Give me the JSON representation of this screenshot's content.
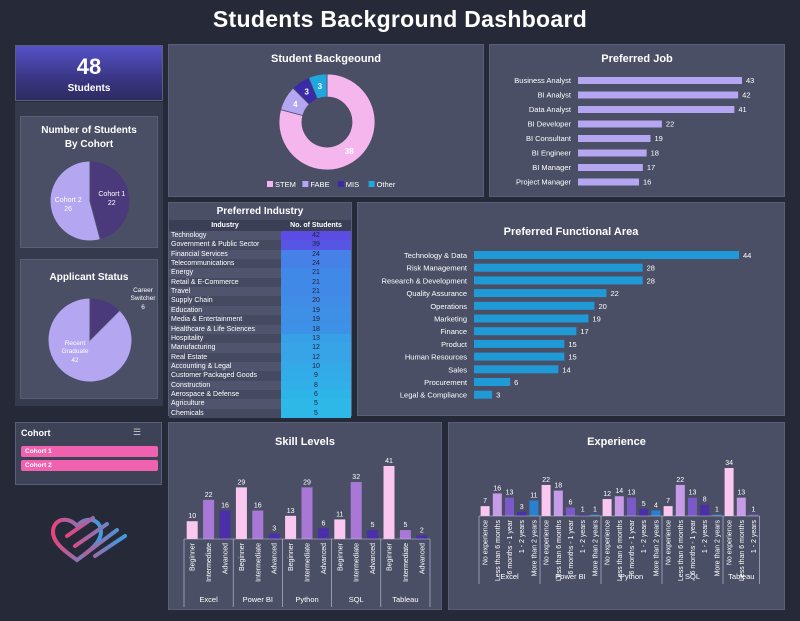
{
  "title": "Students Background Dashboard",
  "kpi": {
    "value": "48",
    "label": "Students"
  },
  "cohort_chart_title_1": "Number of Students",
  "cohort_chart_title_2": "By Cohort",
  "applicant_title": "Applicant Status",
  "background_title": "Student Backgeound",
  "job_title": "Preferred Job",
  "industry_title": "Preferred Industry",
  "industry_col1": "Industry",
  "industry_col2": "No. of Students",
  "func_title": "Preferred Functional Area",
  "skill_title": "Skill Levels",
  "exp_title": "Experience",
  "slicer": {
    "title": "Cohort",
    "items": [
      "Cohort 1",
      "Cohort 2"
    ]
  },
  "colors": {
    "purple_light": "#b4a6f0",
    "purple_dark": "#4a3a7c",
    "pink": "#f4b6ec",
    "blue": "#1f9ad6"
  },
  "chart_data": [
    {
      "id": "cohort",
      "type": "pie",
      "title": "Number of Students By Cohort",
      "labels": [
        "Cohort 1",
        "Cohort 2"
      ],
      "values": [
        22,
        26
      ]
    },
    {
      "id": "applicant",
      "type": "pie",
      "title": "Applicant Status",
      "labels": [
        "Career Switcher",
        "Recent Graduate"
      ],
      "values": [
        6,
        42
      ]
    },
    {
      "id": "background",
      "type": "pie",
      "title": "Student Backgeound",
      "labels": [
        "STEM",
        "FABE",
        "MIS",
        "Other"
      ],
      "values": [
        38,
        4,
        3,
        3
      ],
      "legend": "bottom"
    },
    {
      "id": "job",
      "type": "bar",
      "title": "Preferred Job",
      "categories": [
        "Business Analyst",
        "BI Analyst",
        "Data Analyst",
        "BI Developer",
        "BI Consultant",
        "BI Engineer",
        "BI Manager",
        "Project Manager"
      ],
      "values": [
        43,
        42,
        41,
        22,
        19,
        18,
        17,
        16
      ]
    },
    {
      "id": "industry",
      "type": "table",
      "title": "Preferred Industry",
      "columns": [
        "Industry",
        "No. of Students"
      ],
      "rows": [
        [
          "Technology",
          42
        ],
        [
          "Government & Public Sector",
          39
        ],
        [
          "Financial Services",
          24
        ],
        [
          "Telecommunications",
          24
        ],
        [
          "Energy",
          21
        ],
        [
          "Retail & E-Commerce",
          21
        ],
        [
          "Travel",
          21
        ],
        [
          "Supply Chain",
          20
        ],
        [
          "Education",
          19
        ],
        [
          "Media & Entertainment",
          19
        ],
        [
          "Healthcare & Life Sciences",
          18
        ],
        [
          "Hospitality",
          13
        ],
        [
          "Manufacturing",
          12
        ],
        [
          "Real Estate",
          12
        ],
        [
          "Accounting & Legal",
          10
        ],
        [
          "Customer Packaged Goods",
          9
        ],
        [
          "Construction",
          8
        ],
        [
          "Aerospace & Defense",
          6
        ],
        [
          "Agriculture",
          5
        ],
        [
          "Chemicals",
          5
        ]
      ]
    },
    {
      "id": "functional",
      "type": "bar",
      "title": "Preferred Functional Area",
      "categories": [
        "Technology & Data",
        "Risk Management",
        "Research & Development",
        "Quality Assurance",
        "Operations",
        "Marketing",
        "Finance",
        "Product",
        "Human Resources",
        "Sales",
        "Procurement",
        "Legal & Compliance"
      ],
      "values": [
        44,
        28,
        28,
        22,
        20,
        19,
        17,
        15,
        15,
        14,
        6,
        3
      ]
    },
    {
      "id": "skills",
      "type": "bar",
      "title": "Skill Levels",
      "groups": [
        "Excel",
        "Power BI",
        "Python",
        "SQL",
        "Tableau"
      ],
      "levels": [
        "Beginner",
        "Intermediate",
        "Advanced"
      ],
      "values": [
        [
          10,
          22,
          16
        ],
        [
          29,
          16,
          3
        ],
        [
          13,
          29,
          6
        ],
        [
          11,
          32,
          5
        ],
        [
          41,
          5,
          2
        ]
      ]
    },
    {
      "id": "experience",
      "type": "bar",
      "title": "Experience",
      "groups": [
        "Excel",
        "Power BI",
        "Python",
        "SQL",
        "Tableau"
      ],
      "group_categories": [
        [
          "No experience",
          "Less than 6 months",
          "6 months - 1 year",
          "1 - 2 years",
          "More than 2 years"
        ],
        [
          "No experience",
          "Less than 6 months",
          "6 months - 1 year",
          "1 - 2 years",
          "More than 2 years"
        ],
        [
          "No experience",
          "Less than 6 months",
          "6 months - 1 year",
          "1 - 2 years",
          "More than 2 years"
        ],
        [
          "No experience",
          "Less than 6 months",
          "6 months - 1 year",
          "1 - 2 years",
          "More than 2 years"
        ],
        [
          "No experience",
          "Less than 6 months",
          "1 - 2 years"
        ]
      ],
      "values": [
        [
          7,
          16,
          13,
          3,
          11
        ],
        [
          22,
          18,
          6,
          1,
          1
        ],
        [
          12,
          14,
          13,
          5,
          4
        ],
        [
          7,
          22,
          13,
          8,
          1
        ],
        [
          34,
          13,
          1
        ]
      ]
    }
  ]
}
